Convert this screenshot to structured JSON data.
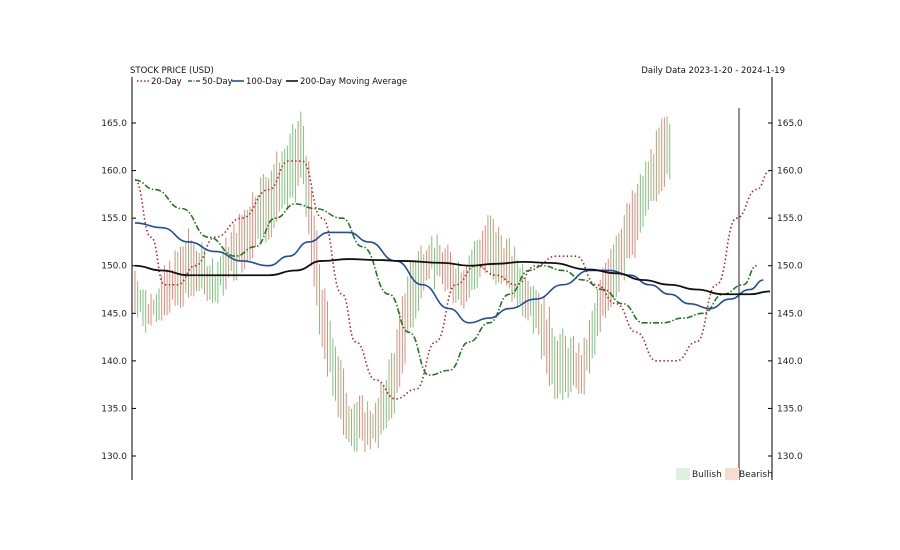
{
  "chart_data": {
    "type": "line",
    "title": "STOCK PRICE (USD)",
    "subtitle": "Daily Data 2023-1-20 - 2024-1-19",
    "ylabel": "",
    "xlabel": "",
    "ylim": [
      127.5,
      168
    ],
    "yticks": [
      "130.0",
      "135.0",
      "140.0",
      "145.0",
      "150.0",
      "155.0",
      "160.0",
      "165.0"
    ],
    "legend_position": "top-left",
    "bottom_legend": [
      "Bullish",
      "Bearish"
    ],
    "grid": false,
    "price_bars_sample": [
      {
        "i": 0,
        "high": 149.5,
        "low": 145.0
      },
      {
        "i": 10,
        "high": 146.5,
        "low": 143.5
      },
      {
        "i": 40,
        "high": 153.0,
        "low": 147.0
      },
      {
        "i": 60,
        "high": 150.0,
        "low": 146.5
      },
      {
        "i": 90,
        "high": 158.0,
        "low": 152.0
      },
      {
        "i": 115,
        "high": 163.0,
        "low": 156.0
      },
      {
        "i": 125,
        "high": 166.0,
        "low": 159.0
      },
      {
        "i": 140,
        "high": 148.0,
        "low": 141.0
      },
      {
        "i": 160,
        "high": 136.0,
        "low": 131.0
      },
      {
        "i": 180,
        "high": 135.0,
        "low": 131.0
      },
      {
        "i": 195,
        "high": 142.0,
        "low": 135.0
      },
      {
        "i": 205,
        "high": 150.0,
        "low": 143.0
      },
      {
        "i": 220,
        "high": 153.0,
        "low": 149.0
      },
      {
        "i": 245,
        "high": 150.0,
        "low": 146.0
      },
      {
        "i": 265,
        "high": 155.0,
        "low": 150.0
      },
      {
        "i": 300,
        "high": 148.0,
        "low": 143.0
      },
      {
        "i": 315,
        "high": 143.0,
        "low": 136.0
      },
      {
        "i": 335,
        "high": 141.0,
        "low": 137.0
      },
      {
        "i": 355,
        "high": 152.0,
        "low": 146.0
      },
      {
        "i": 375,
        "high": 158.0,
        "low": 152.0
      },
      {
        "i": 395,
        "high": 165.0,
        "low": 159.0
      }
    ],
    "series": [
      {
        "name": "20-Day",
        "color": "#c0222a",
        "style": "dotted",
        "points": [
          [
            0,
            159
          ],
          [
            12,
            153
          ],
          [
            22,
            148
          ],
          [
            32,
            148
          ],
          [
            45,
            150
          ],
          [
            60,
            153
          ],
          [
            80,
            155
          ],
          [
            100,
            158
          ],
          [
            115,
            161
          ],
          [
            125,
            161
          ],
          [
            140,
            155
          ],
          [
            155,
            147
          ],
          [
            165,
            142
          ],
          [
            180,
            138
          ],
          [
            195,
            136
          ],
          [
            210,
            137
          ],
          [
            225,
            142
          ],
          [
            240,
            148
          ],
          [
            255,
            150
          ],
          [
            270,
            149
          ],
          [
            285,
            148
          ],
          [
            300,
            150
          ],
          [
            315,
            151
          ],
          [
            330,
            151
          ],
          [
            345,
            148
          ],
          [
            360,
            146
          ],
          [
            375,
            143
          ],
          [
            390,
            140
          ],
          [
            405,
            140
          ],
          [
            420,
            142
          ],
          [
            435,
            148
          ],
          [
            450,
            155
          ],
          [
            465,
            158
          ],
          [
            475,
            160
          ]
        ]
      },
      {
        "name": "50-Day",
        "color": "#1f7a1f",
        "style": "dashdot",
        "points": [
          [
            0,
            159
          ],
          [
            15,
            158
          ],
          [
            35,
            156
          ],
          [
            55,
            153
          ],
          [
            75,
            151
          ],
          [
            90,
            152
          ],
          [
            105,
            155
          ],
          [
            120,
            156.5
          ],
          [
            135,
            156
          ],
          [
            155,
            155
          ],
          [
            170,
            152
          ],
          [
            190,
            147
          ],
          [
            205,
            143
          ],
          [
            220,
            138.5
          ],
          [
            235,
            139
          ],
          [
            250,
            142
          ],
          [
            265,
            144
          ],
          [
            280,
            147
          ],
          [
            295,
            149.5
          ],
          [
            305,
            150
          ],
          [
            320,
            149.5
          ],
          [
            335,
            148.5
          ],
          [
            350,
            147.5
          ],
          [
            365,
            146
          ],
          [
            380,
            144
          ],
          [
            395,
            144
          ],
          [
            410,
            144.5
          ],
          [
            425,
            145
          ],
          [
            440,
            147
          ],
          [
            455,
            148
          ],
          [
            465,
            150
          ]
        ]
      },
      {
        "name": "100-Day",
        "color": "#1f4e9c",
        "style": "solid",
        "points": [
          [
            0,
            154.5
          ],
          [
            20,
            154
          ],
          [
            40,
            152.5
          ],
          [
            60,
            151.5
          ],
          [
            80,
            150.5
          ],
          [
            100,
            150
          ],
          [
            115,
            151
          ],
          [
            130,
            152.5
          ],
          [
            145,
            153.5
          ],
          [
            160,
            153.5
          ],
          [
            175,
            152.5
          ],
          [
            195,
            150.5
          ],
          [
            215,
            148
          ],
          [
            235,
            145.5
          ],
          [
            250,
            144
          ],
          [
            265,
            144.5
          ],
          [
            280,
            145.5
          ],
          [
            300,
            146.5
          ],
          [
            320,
            148
          ],
          [
            340,
            149.5
          ],
          [
            355,
            149.5
          ],
          [
            370,
            149
          ],
          [
            385,
            148
          ],
          [
            400,
            147
          ],
          [
            415,
            146
          ],
          [
            430,
            145.5
          ],
          [
            445,
            146.5
          ],
          [
            460,
            147.5
          ],
          [
            470,
            148.5
          ]
        ]
      },
      {
        "name": "200-Day Moving Average",
        "color": "#111111",
        "style": "solid",
        "points": [
          [
            0,
            150
          ],
          [
            20,
            149.5
          ],
          [
            40,
            149
          ],
          [
            60,
            149
          ],
          [
            80,
            149
          ],
          [
            100,
            149
          ],
          [
            120,
            149.5
          ],
          [
            140,
            150.5
          ],
          [
            160,
            150.7
          ],
          [
            180,
            150.6
          ],
          [
            200,
            150.5
          ],
          [
            230,
            150.3
          ],
          [
            250,
            150
          ],
          [
            270,
            150.2
          ],
          [
            290,
            150.4
          ],
          [
            310,
            150.3
          ],
          [
            340,
            149.6
          ],
          [
            360,
            149.2
          ],
          [
            380,
            148.5
          ],
          [
            400,
            148
          ],
          [
            420,
            147.5
          ],
          [
            440,
            147
          ],
          [
            460,
            147
          ],
          [
            475,
            147.3
          ]
        ]
      }
    ]
  }
}
